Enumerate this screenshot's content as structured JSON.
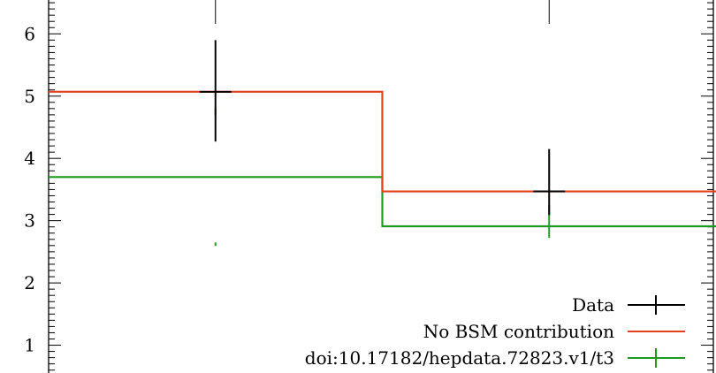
{
  "chart_data": {
    "type": "line",
    "x_bins": [
      [
        0,
        1
      ],
      [
        1,
        2
      ]
    ],
    "xlim": [
      0,
      2
    ],
    "ylim": [
      0.5,
      6.5
    ],
    "y_ticks": [
      1,
      2,
      3,
      4,
      5,
      6
    ],
    "y_tick_labels": [
      "1",
      "2",
      "3",
      "4",
      "5",
      "6"
    ],
    "grid": false,
    "legend_position": "bottom-right",
    "series": [
      {
        "name": "Data",
        "style": "points-with-errorbars",
        "color": "#000000",
        "x": [
          0.5,
          1.5
        ],
        "y": [
          5.07,
          3.47
        ],
        "y_err_low": [
          0.8,
          0.38
        ],
        "y_err_high": [
          0.83,
          0.68
        ]
      },
      {
        "name": "No BSM contribution",
        "style": "histogram",
        "color": "#e0401a",
        "values": [
          5.07,
          3.47
        ]
      },
      {
        "name": "doi:10.17182/hepdata.72823.v1/t3",
        "style": "histogram-with-errorbars",
        "color": "#1e9b1e",
        "values": [
          3.7,
          2.91
        ],
        "y_err_low": [
          1.05,
          0.13
        ],
        "y_err_high": [
          1.0,
          0.23
        ]
      }
    ]
  }
}
